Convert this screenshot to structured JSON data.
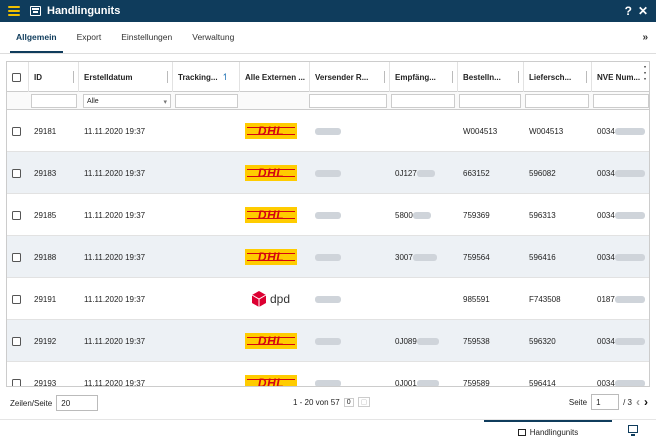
{
  "window": {
    "title": "Handlingunits",
    "help_label": "?",
    "close_label": "✕"
  },
  "tabs": [
    {
      "label": "Allgemein",
      "active": true
    },
    {
      "label": "Export",
      "active": false
    },
    {
      "label": "Einstellungen",
      "active": false
    },
    {
      "label": "Verwaltung",
      "active": false
    }
  ],
  "tabs_more_icon": "double-chevron-down-icon",
  "columns": [
    {
      "label": "ID"
    },
    {
      "label": "Erstelldatum"
    },
    {
      "label": "Tracking..."
    },
    {
      "label": "Alle Externen ..."
    },
    {
      "label": "Versender R..."
    },
    {
      "label": "Empfäng..."
    },
    {
      "label": "Bestelln..."
    },
    {
      "label": "Liefersch..."
    },
    {
      "label": "NVE Num..."
    }
  ],
  "filters": {
    "erstelldatum": "Alle"
  },
  "rows": [
    {
      "id": "29181",
      "date": "11.11.2020 19:37",
      "carrier": "DHL",
      "empfaenger": "",
      "bestell": "W004513",
      "liefer": "W004513",
      "nve": "0034"
    },
    {
      "id": "29183",
      "date": "11.11.2020 19:37",
      "carrier": "DHL",
      "empfaenger": "0J127",
      "bestell": "663152",
      "liefer": "596082",
      "nve": "0034"
    },
    {
      "id": "29185",
      "date": "11.11.2020 19:37",
      "carrier": "DHL",
      "empfaenger": "5800",
      "bestell": "759369",
      "liefer": "596313",
      "nve": "0034"
    },
    {
      "id": "29188",
      "date": "11.11.2020 19:37",
      "carrier": "DHL",
      "empfaenger": "3007",
      "bestell": "759564",
      "liefer": "596416",
      "nve": "0034"
    },
    {
      "id": "29191",
      "date": "11.11.2020 19:37",
      "carrier": "dpd",
      "empfaenger": "",
      "bestell": "985591",
      "liefer": "F743508",
      "nve": "0187"
    },
    {
      "id": "29192",
      "date": "11.11.2020 19:37",
      "carrier": "DHL",
      "empfaenger": "0J089",
      "bestell": "759538",
      "liefer": "596320",
      "nve": "0034"
    },
    {
      "id": "29193",
      "date": "11.11.2020 19:37",
      "carrier": "DHL",
      "empfaenger": "0J001",
      "bestell": "759589",
      "liefer": "596414",
      "nve": "0034"
    }
  ],
  "footer": {
    "rows_label": "Zeilen/Seite",
    "rows_value": "20",
    "range_text": "1 - 20 von 57",
    "selected_count": "0",
    "page_label": "Seite",
    "page_value": "1",
    "page_total": "/ 3"
  },
  "statusbar": {
    "tab_label": "Handlingunits"
  },
  "colors": {
    "titlebar": "#0f3c5c",
    "accent": "#f0c000",
    "row_alt": "#edf1f5",
    "dhl_yellow": "#ffcc00",
    "dhl_red": "#d40511",
    "dpd_red": "#dc0032"
  }
}
